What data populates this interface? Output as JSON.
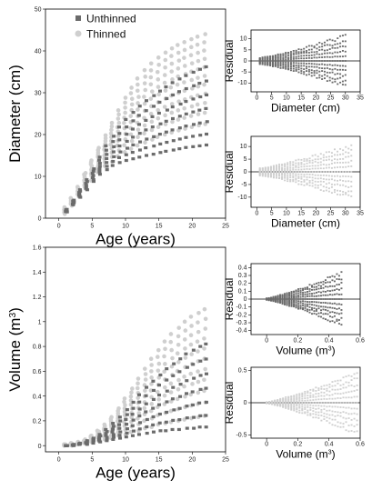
{
  "colors": {
    "unthinned": "#6b6b6b",
    "thinned": "#cfcfcf",
    "axis": "#000000"
  },
  "chart_data": [
    {
      "id": "diameter-main",
      "type": "scatter",
      "xlabel": "Age (years)",
      "ylabel": "Diameter (cm)",
      "xlim": [
        -2,
        25
      ],
      "ylim": [
        0,
        50
      ],
      "xticks": [
        0,
        5,
        10,
        15,
        20,
        25
      ],
      "yticks": [
        0,
        10,
        20,
        30,
        40,
        50
      ],
      "legend": {
        "placement": "top-left",
        "entries": [
          "Unthinned",
          "Thinned"
        ]
      },
      "series": [
        {
          "name": "Unthinned",
          "x": [
            1,
            2,
            3,
            4,
            5,
            6,
            7,
            8,
            9,
            10,
            11,
            12,
            13,
            14,
            15,
            16,
            17,
            18,
            19,
            20,
            21,
            22
          ],
          "ymin": [
            1.5,
            3.2,
            5,
            6.8,
            8.8,
            10.5,
            11.6,
            12.6,
            13.3,
            13.8,
            14.2,
            14.6,
            15,
            15.3,
            15.7,
            16,
            16.3,
            16.6,
            16.9,
            17.1,
            17.3,
            17.5
          ],
          "ymax": [
            2.1,
            4.3,
            6.8,
            9.2,
            11.8,
            14.6,
            17.3,
            19.6,
            21.8,
            23.6,
            25.3,
            26.8,
            28.1,
            29.3,
            30.4,
            31.4,
            32.4,
            33.3,
            34.1,
            34.9,
            35.6,
            36.2
          ]
        },
        {
          "name": "Thinned",
          "x": [
            1,
            2,
            3,
            4,
            5,
            6,
            7,
            8,
            9,
            10,
            11,
            12,
            13,
            14,
            15,
            16,
            17,
            18,
            19,
            20,
            21,
            22
          ],
          "ymin": [
            1.0,
            3.0,
            5.2,
            7,
            9,
            11,
            12.5,
            13.5,
            14.8,
            15.8,
            16.6,
            17.4,
            18.1,
            18.8,
            19.4,
            20,
            20.5,
            21,
            21.4,
            21.8,
            22.2,
            22.5
          ],
          "ymax": [
            2.6,
            4.8,
            7.5,
            10.8,
            13.8,
            16.8,
            19.8,
            22.8,
            25.8,
            28.8,
            31.2,
            33.4,
            35.4,
            37,
            38.4,
            39.6,
            40.6,
            41.4,
            42.1,
            42.8,
            43.4,
            44
          ]
        }
      ]
    },
    {
      "id": "diameter-resid-unthinned",
      "type": "scatter",
      "xlabel": "Diameter (cm)",
      "ylabel": "Residual",
      "xlim": [
        -2,
        35
      ],
      "ylim": [
        -14,
        14
      ],
      "xticks": [
        0,
        5,
        10,
        15,
        20,
        25,
        30,
        35
      ],
      "yticks": [
        -10,
        -5,
        0,
        5,
        10
      ],
      "series": [
        {
          "name": "Unthinned",
          "x_range": [
            1,
            30
          ],
          "spread_max": [
            1.5,
            12
          ]
        }
      ]
    },
    {
      "id": "diameter-resid-thinned",
      "type": "scatter",
      "xlabel": "Diameter (cm)",
      "ylabel": "Residual",
      "xlim": [
        -2,
        35
      ],
      "ylim": [
        -14,
        14
      ],
      "xticks": [
        0,
        5,
        10,
        15,
        20,
        25,
        30,
        35
      ],
      "yticks": [
        -10,
        -5,
        0,
        5,
        10
      ],
      "series": [
        {
          "name": "Thinned",
          "x_range": [
            1,
            32
          ],
          "spread_max": [
            1.5,
            11
          ]
        }
      ]
    },
    {
      "id": "volume-main",
      "type": "scatter",
      "xlabel": "Age (years)",
      "ylabel_main": "Volume (m",
      "ylabel_sup": "3",
      "ylabel_end": ")",
      "xlim": [
        -2,
        25
      ],
      "ylim": [
        -0.05,
        1.6
      ],
      "xticks": [
        0,
        5,
        10,
        15,
        20,
        25
      ],
      "yticks": [
        0.0,
        0.2,
        0.4,
        0.6,
        0.8,
        1.0,
        1.2,
        1.4,
        1.6
      ],
      "series": [
        {
          "name": "Unthinned",
          "x": [
            1,
            2,
            3,
            4,
            5,
            6,
            7,
            8,
            9,
            10,
            11,
            12,
            13,
            14,
            15,
            16,
            17,
            18,
            19,
            20,
            21,
            22
          ],
          "ymin": [
            0,
            0,
            0.01,
            0.01,
            0.02,
            0.03,
            0.04,
            0.05,
            0.06,
            0.07,
            0.08,
            0.09,
            0.1,
            0.11,
            0.12,
            0.12,
            0.13,
            0.13,
            0.14,
            0.14,
            0.15,
            0.15
          ],
          "ymax": [
            0,
            0.01,
            0.02,
            0.04,
            0.06,
            0.09,
            0.13,
            0.18,
            0.23,
            0.29,
            0.35,
            0.41,
            0.47,
            0.52,
            0.57,
            0.62,
            0.66,
            0.7,
            0.74,
            0.77,
            0.8,
            0.82
          ]
        },
        {
          "name": "Thinned",
          "x": [
            1,
            2,
            3,
            4,
            5,
            6,
            7,
            8,
            9,
            10,
            11,
            12,
            13,
            14,
            15,
            16,
            17,
            18,
            19,
            20,
            21,
            22
          ],
          "ymin": [
            0,
            0,
            0.01,
            0.02,
            0.03,
            0.04,
            0.05,
            0.06,
            0.08,
            0.09,
            0.11,
            0.12,
            0.14,
            0.15,
            0.17,
            0.18,
            0.19,
            0.2,
            0.21,
            0.22,
            0.23,
            0.24
          ],
          "ymax": [
            0.01,
            0.02,
            0.03,
            0.05,
            0.08,
            0.12,
            0.17,
            0.23,
            0.3,
            0.38,
            0.46,
            0.54,
            0.62,
            0.7,
            0.77,
            0.84,
            0.9,
            0.95,
            1.0,
            1.04,
            1.07,
            1.1
          ]
        }
      ]
    },
    {
      "id": "volume-resid-unthinned",
      "type": "scatter",
      "xlabel_main": "Volume (m",
      "xlabel_sup": "3",
      "xlabel_end": ")",
      "ylabel": "Residual",
      "xlim": [
        -0.1,
        0.6
      ],
      "ylim": [
        -0.45,
        0.45
      ],
      "xticks": [
        0.0,
        0.2,
        0.4,
        0.6
      ],
      "yticks": [
        -0.4,
        -0.3,
        -0.2,
        -0.1,
        0.0,
        0.1,
        0.2,
        0.3,
        0.4
      ],
      "series": [
        {
          "name": "Unthinned",
          "x_range": [
            0,
            0.48
          ],
          "spread_max": [
            0.01,
            0.35
          ]
        }
      ]
    },
    {
      "id": "volume-resid-thinned",
      "type": "scatter",
      "xlabel_main": "Volume (m",
      "xlabel_sup": "3",
      "xlabel_end": ")",
      "ylabel": "Residual",
      "xlim": [
        -0.1,
        0.6
      ],
      "ylim": [
        -0.55,
        0.55
      ],
      "xticks": [
        0.0,
        0.2,
        0.4,
        0.6
      ],
      "yticks": [
        -0.5,
        0.0,
        0.5
      ],
      "series": [
        {
          "name": "Thinned",
          "x_range": [
            0,
            0.58
          ],
          "spread_max": [
            0.01,
            0.5
          ]
        }
      ]
    }
  ]
}
